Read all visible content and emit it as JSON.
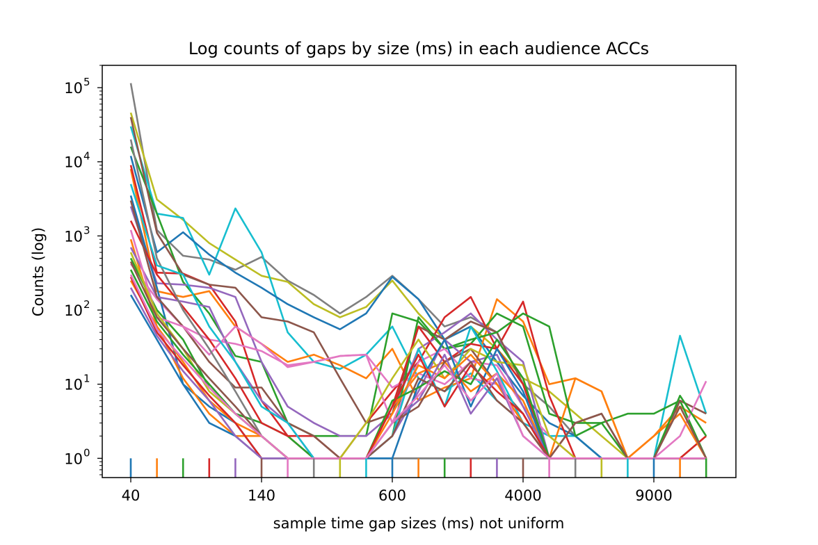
{
  "chart_data": {
    "type": "line",
    "title": "Log counts of gaps by size (ms) in each audience ACCs",
    "xlabel": "sample time gap sizes (ms) not uniform",
    "ylabel": "Counts (log)",
    "x_scale": "categorical",
    "y_scale": "log",
    "ylim": [
      0.55,
      200000
    ],
    "x_count": 23,
    "x_ticks": [
      {
        "index": 0,
        "label": "40"
      },
      {
        "index": 5,
        "label": "140"
      },
      {
        "index": 10,
        "label": "600"
      },
      {
        "index": 15,
        "label": "4000"
      },
      {
        "index": 20,
        "label": "9000"
      }
    ],
    "y_ticks": [
      {
        "value": 1,
        "base": "10",
        "exp": "0"
      },
      {
        "value": 10,
        "base": "10",
        "exp": "1"
      },
      {
        "value": 100,
        "base": "10",
        "exp": "2"
      },
      {
        "value": 1000,
        "base": "10",
        "exp": "3"
      },
      {
        "value": 10000,
        "base": "10",
        "exp": "4"
      },
      {
        "value": 100000,
        "base": "10",
        "exp": "5"
      }
    ],
    "grid": false,
    "legend": "none",
    "series_colors": [
      "#1f77b4",
      "#ff7f0e",
      "#2ca02c",
      "#d62728",
      "#9467bd",
      "#8c564b",
      "#e377c2",
      "#7f7f7f",
      "#bcbd22",
      "#17becf"
    ],
    "series": [
      {
        "values": [
          115000,
          1200,
          540,
          480,
          350,
          520,
          250,
          160,
          90,
          150,
          290,
          140,
          60,
          80,
          50,
          10,
          5,
          2,
          1,
          1,
          1,
          1,
          1
        ],
        "color": "#7f7f7f"
      },
      {
        "values": [
          46000,
          3100,
          1650,
          800,
          480,
          290,
          240,
          120,
          80,
          110,
          250,
          90,
          40,
          60,
          30,
          12,
          8,
          4,
          2,
          1,
          1,
          1,
          2
        ],
        "color": "#bcbd22"
      },
      {
        "values": [
          30000,
          2000,
          1750,
          300,
          2350,
          600,
          50,
          20,
          16,
          25,
          60,
          12,
          8,
          14,
          6,
          3,
          2,
          2,
          1,
          1,
          1,
          45,
          4
        ],
        "color": "#17becf"
      },
      {
        "values": [
          12000,
          600,
          1120,
          560,
          320,
          200,
          120,
          80,
          55,
          90,
          280,
          140,
          40,
          60,
          20,
          7,
          3,
          2,
          1,
          1,
          1,
          1,
          1
        ],
        "color": "#1f77b4"
      },
      {
        "values": [
          8000,
          180,
          150,
          180,
          60,
          35,
          20,
          25,
          18,
          12,
          30,
          6,
          9,
          12,
          140,
          70,
          10,
          12,
          8,
          1,
          2,
          5,
          3
        ],
        "color": "#ff7f0e"
      },
      {
        "values": [
          16000,
          2000,
          240,
          90,
          24,
          20,
          3,
          2,
          2,
          2,
          90,
          70,
          30,
          35,
          90,
          60,
          4,
          3,
          3,
          4,
          4,
          6,
          1
        ],
        "color": "#2ca02c"
      },
      {
        "values": [
          9000,
          320,
          310,
          220,
          70,
          6,
          2,
          1,
          1,
          3,
          8,
          20,
          80,
          150,
          30,
          130,
          7,
          1,
          1,
          1,
          1,
          1,
          2
        ],
        "color": "#d62728"
      },
      {
        "values": [
          2500,
          230,
          220,
          200,
          150,
          20,
          5,
          3,
          2,
          2,
          4,
          30,
          50,
          90,
          40,
          20,
          1,
          1,
          1,
          1,
          1,
          1,
          1
        ],
        "color": "#9467bd"
      },
      {
        "values": [
          40000,
          1100,
          300,
          220,
          200,
          80,
          70,
          50,
          12,
          3,
          4,
          60,
          40,
          70,
          50,
          10,
          1,
          3,
          4,
          1,
          1,
          6,
          4
        ],
        "color": "#8c564b"
      },
      {
        "values": [
          420,
          140,
          60,
          40,
          35,
          28,
          18,
          20,
          24,
          25,
          9,
          14,
          10,
          20,
          18,
          5,
          2,
          1,
          1,
          1,
          1,
          2,
          11
        ],
        "color": "#e377c2"
      },
      {
        "values": [
          3500,
          200,
          10,
          5,
          3,
          1,
          1,
          1,
          1,
          1,
          1,
          1,
          1,
          1,
          1,
          1,
          1,
          1,
          1,
          1,
          1,
          1,
          1
        ],
        "color": "#1f77b4"
      },
      {
        "values": [
          900,
          60,
          12,
          4,
          2,
          2,
          1,
          1,
          1,
          1,
          5,
          14,
          20,
          8,
          14,
          6,
          1,
          12,
          8,
          1,
          2,
          4,
          1
        ],
        "color": "#ff7f0e"
      },
      {
        "values": [
          500,
          100,
          40,
          9,
          4,
          3,
          2,
          1,
          1,
          1,
          2,
          80,
          30,
          40,
          50,
          90,
          60,
          2,
          3,
          1,
          1,
          7,
          2
        ],
        "color": "#2ca02c"
      },
      {
        "values": [
          1600,
          300,
          110,
          40,
          12,
          3,
          2,
          2,
          1,
          1,
          5,
          60,
          20,
          35,
          30,
          10,
          1,
          1,
          1,
          1,
          1,
          1,
          1
        ],
        "color": "#d62728"
      },
      {
        "values": [
          700,
          150,
          130,
          110,
          20,
          6,
          3,
          1,
          1,
          1,
          2,
          8,
          40,
          20,
          25,
          5,
          1,
          1,
          1,
          1,
          1,
          1,
          1
        ],
        "color": "#9467bd"
      },
      {
        "values": [
          3000,
          150,
          60,
          20,
          9,
          9,
          3,
          2,
          1,
          1,
          3,
          5,
          20,
          30,
          10,
          4,
          1,
          3,
          4,
          1,
          1,
          5,
          1
        ],
        "color": "#8c564b"
      },
      {
        "values": [
          1200,
          80,
          60,
          25,
          60,
          35,
          17,
          20,
          24,
          25,
          3,
          20,
          30,
          12,
          10,
          3,
          1,
          1,
          1,
          1,
          1,
          1,
          1
        ],
        "color": "#e377c2"
      },
      {
        "values": [
          20000,
          500,
          100,
          30,
          8,
          2,
          1,
          1,
          1,
          1,
          1,
          1,
          1,
          1,
          1,
          1,
          1,
          1,
          1,
          1,
          1,
          1,
          1
        ],
        "color": "#7f7f7f"
      },
      {
        "values": [
          600,
          90,
          30,
          8,
          4,
          2,
          1,
          1,
          1,
          3,
          12,
          40,
          12,
          30,
          20,
          18,
          2,
          1,
          1,
          1,
          1,
          1,
          1
        ],
        "color": "#bcbd22"
      },
      {
        "values": [
          5000,
          400,
          300,
          60,
          20,
          5,
          3,
          1,
          1,
          1,
          2,
          30,
          5,
          60,
          15,
          3,
          1,
          1,
          1,
          1,
          1,
          1,
          1
        ],
        "color": "#17becf"
      },
      {
        "values": [
          160,
          40,
          10,
          3,
          2,
          1,
          1,
          1,
          1,
          1,
          1,
          10,
          40,
          5,
          30,
          8,
          1,
          1,
          1,
          1,
          1,
          1,
          1
        ],
        "color": "#1f77b4"
      },
      {
        "values": [
          250,
          60,
          20,
          6,
          3,
          2,
          1,
          1,
          1,
          1,
          4,
          18,
          12,
          25,
          10,
          3,
          1,
          1,
          1,
          1,
          1,
          1,
          1
        ],
        "color": "#ff7f0e"
      },
      {
        "values": [
          350,
          70,
          25,
          10,
          4,
          2,
          1,
          1,
          1,
          1,
          6,
          9,
          15,
          10,
          40,
          12,
          1,
          1,
          1,
          1,
          1,
          1,
          1
        ],
        "color": "#2ca02c"
      },
      {
        "values": [
          280,
          50,
          18,
          7,
          3,
          1,
          1,
          1,
          1,
          1,
          5,
          25,
          5,
          18,
          8,
          4,
          1,
          1,
          1,
          1,
          1,
          1,
          1
        ],
        "color": "#d62728"
      },
      {
        "values": [
          200,
          45,
          15,
          6,
          2,
          1,
          1,
          1,
          1,
          1,
          3,
          6,
          25,
          4,
          12,
          2,
          1,
          1,
          1,
          1,
          1,
          1,
          1
        ],
        "color": "#9467bd"
      },
      {
        "values": [
          450,
          80,
          30,
          12,
          5,
          2,
          1,
          1,
          1,
          1,
          2,
          12,
          8,
          20,
          6,
          3,
          1,
          1,
          1,
          1,
          1,
          1,
          1
        ],
        "color": "#8c564b"
      },
      {
        "values": [
          300,
          55,
          22,
          9,
          4,
          2,
          1,
          1,
          1,
          1,
          3,
          7,
          18,
          6,
          14,
          2,
          1,
          1,
          1,
          1,
          1,
          1,
          1
        ],
        "color": "#e377c2"
      }
    ]
  }
}
